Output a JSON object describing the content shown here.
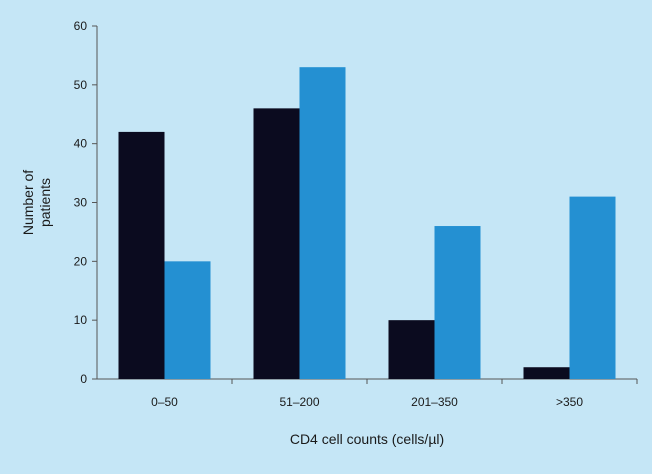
{
  "chart_data": {
    "type": "bar",
    "title": "",
    "categories": [
      "0–50",
      "51–200",
      "201–350",
      ">350"
    ],
    "series": [
      {
        "values": [
          42,
          46,
          10,
          2
        ],
        "color": "#0b0b1f"
      },
      {
        "values": [
          20,
          53,
          26,
          31
        ],
        "color": "#2490d2"
      }
    ],
    "xlabel": "CD4 cell counts (cells/µl)",
    "ylabel_lines": [
      "Number of",
      "patients"
    ],
    "ylim": [
      0,
      60
    ],
    "yticks": [
      0,
      10,
      20,
      30,
      40,
      50,
      60
    ],
    "grid": false,
    "legend": "none",
    "background_color": "#c5e6f6",
    "plot_background_color": "#c5e6f6"
  }
}
